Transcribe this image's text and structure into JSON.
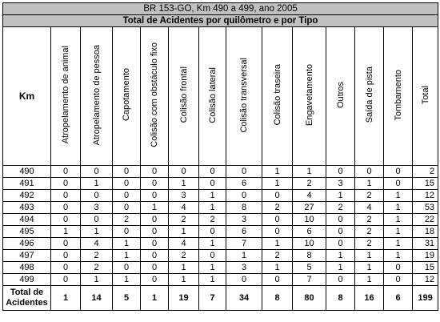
{
  "title": "BR 153-GO, Km 490 a 499, ano 2005",
  "subtitle": "Total de Acidentes por quilômetro e por Tipo",
  "km_header": "Km",
  "columns": [
    "Atropelamento de animal",
    "Atropelamento de pessoa",
    "Capotamento",
    "Colisão com obstáculo fixo",
    "Colisão frontal",
    "Colisão lateral",
    "Colisão transversal",
    "Colisão traseira",
    "Engavetamento",
    "Outros",
    "Saída de pista",
    "Tombamento",
    "Total"
  ],
  "rows": [
    {
      "km": "490",
      "values": [
        "0",
        "0",
        "0",
        "0",
        "0",
        "0",
        "0",
        "1",
        "1",
        "0",
        "0",
        "0",
        "2"
      ]
    },
    {
      "km": "491",
      "values": [
        "0",
        "1",
        "0",
        "0",
        "1",
        "0",
        "6",
        "1",
        "2",
        "3",
        "1",
        "0",
        "15"
      ]
    },
    {
      "km": "492",
      "values": [
        "0",
        "0",
        "0",
        "0",
        "3",
        "1",
        "0",
        "0",
        "4",
        "1",
        "2",
        "1",
        "12"
      ]
    },
    {
      "km": "493",
      "values": [
        "0",
        "3",
        "0",
        "1",
        "4",
        "1",
        "8",
        "2",
        "27",
        "2",
        "4",
        "1",
        "53"
      ]
    },
    {
      "km": "494",
      "values": [
        "0",
        "0",
        "2",
        "0",
        "2",
        "2",
        "3",
        "0",
        "10",
        "0",
        "2",
        "1",
        "22"
      ]
    },
    {
      "km": "495",
      "values": [
        "1",
        "1",
        "0",
        "0",
        "1",
        "0",
        "6",
        "0",
        "6",
        "0",
        "2",
        "1",
        "18"
      ]
    },
    {
      "km": "496",
      "values": [
        "0",
        "4",
        "1",
        "0",
        "4",
        "1",
        "7",
        "1",
        "10",
        "0",
        "2",
        "1",
        "31"
      ]
    },
    {
      "km": "497",
      "values": [
        "0",
        "2",
        "1",
        "0",
        "2",
        "0",
        "1",
        "2",
        "8",
        "1",
        "1",
        "1",
        "19"
      ]
    },
    {
      "km": "498",
      "values": [
        "0",
        "2",
        "0",
        "0",
        "1",
        "1",
        "3",
        "1",
        "5",
        "1",
        "1",
        "0",
        "15"
      ]
    },
    {
      "km": "499",
      "values": [
        "0",
        "1",
        "1",
        "0",
        "1",
        "1",
        "0",
        "0",
        "7",
        "0",
        "1",
        "0",
        "12"
      ]
    }
  ],
  "total_label": "Total de Acidentes",
  "totals": [
    "1",
    "14",
    "5",
    "1",
    "19",
    "7",
    "34",
    "8",
    "80",
    "8",
    "16",
    "6",
    "199"
  ]
}
